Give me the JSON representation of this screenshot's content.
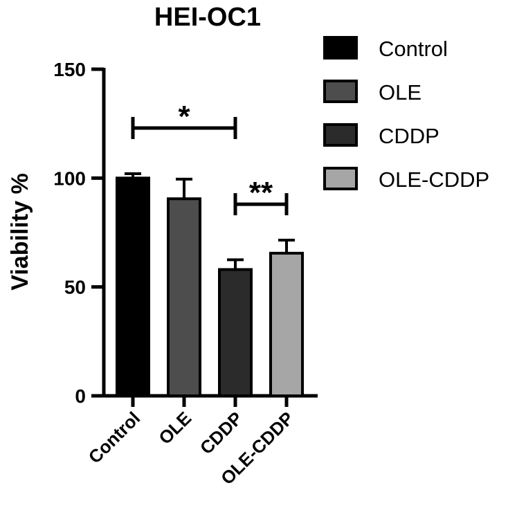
{
  "chart_data": {
    "type": "bar",
    "title": "HEI-OC1",
    "xlabel": "",
    "ylabel": "Viability %",
    "ylim": [
      0,
      150
    ],
    "yticks": [
      "0",
      "50",
      "100",
      "150"
    ],
    "categories": [
      "Control",
      "OLE",
      "CDDP",
      "OLE-CDDP"
    ],
    "values": [
      100,
      90.5,
      58,
      65.5
    ],
    "errors": [
      2,
      9,
      4.5,
      6
    ],
    "colors": [
      "#000000",
      "#4d4d4d",
      "#2b2b2b",
      "#a6a6a6"
    ],
    "legend": {
      "placement": "right",
      "entries": [
        "Control",
        "OLE",
        "CDDP",
        "OLE-CDDP"
      ]
    },
    "grid": false,
    "significance": [
      {
        "from": "Control",
        "to": "CDDP",
        "label": "*",
        "y": 123
      },
      {
        "from": "CDDP",
        "to": "OLE-CDDP",
        "label": "**",
        "y": 88
      }
    ]
  }
}
